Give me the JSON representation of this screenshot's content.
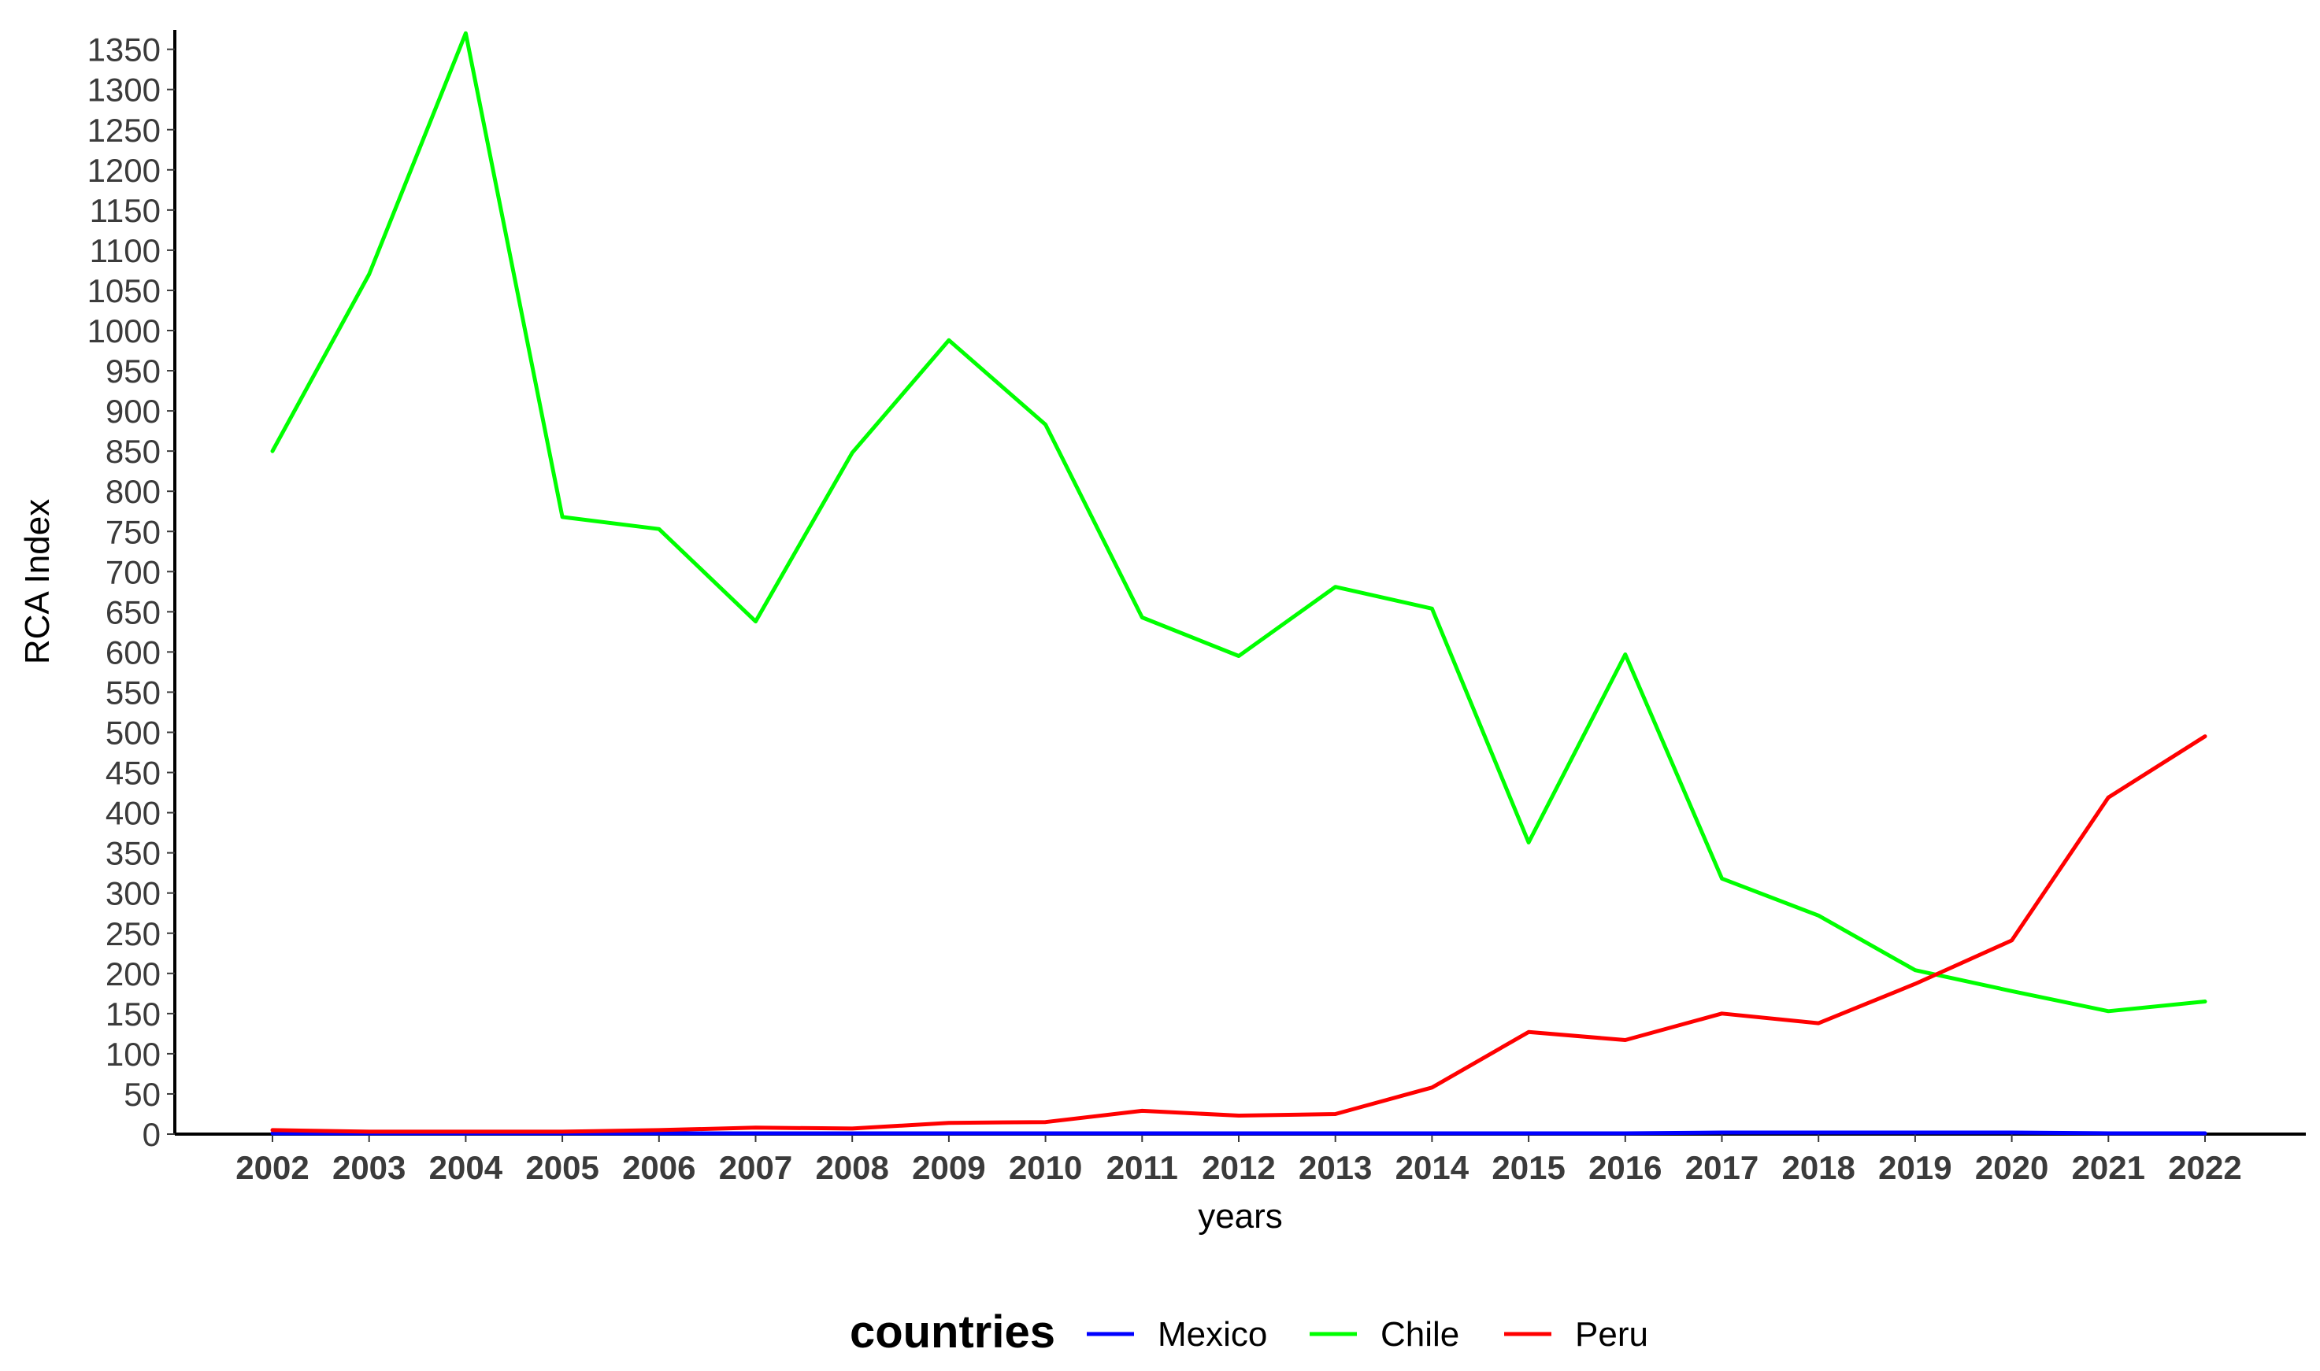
{
  "chart_data": {
    "type": "line",
    "title": "",
    "xlabel": "years",
    "ylabel": "RCA Index",
    "x": [
      2002,
      2003,
      2004,
      2005,
      2006,
      2007,
      2008,
      2009,
      2010,
      2011,
      2012,
      2013,
      2014,
      2015,
      2016,
      2017,
      2018,
      2019,
      2020,
      2021,
      2022
    ],
    "xticks": [
      "2002",
      "2003",
      "2004",
      "2005",
      "2006",
      "2007",
      "2008",
      "2009",
      "2010",
      "2011",
      "2012",
      "2013",
      "2014",
      "2015",
      "2016",
      "2017",
      "2018",
      "2019",
      "2020",
      "2021",
      "2022"
    ],
    "ylim": [
      0,
      1400
    ],
    "yticks": [
      0,
      50,
      100,
      150,
      200,
      250,
      300,
      350,
      400,
      450,
      500,
      550,
      600,
      650,
      700,
      750,
      800,
      850,
      900,
      950,
      1000,
      1050,
      1100,
      1150,
      1200,
      1250,
      1300,
      1350
    ],
    "grid": false,
    "legend": {
      "title": "countries",
      "placement": "bottom"
    },
    "series": [
      {
        "name": "Mexico",
        "color": "#0000ff",
        "values": [
          1,
          1,
          1,
          1,
          1,
          1,
          1,
          1,
          1,
          1,
          1,
          1,
          1,
          1,
          1,
          2,
          2,
          2,
          2,
          1,
          1
        ]
      },
      {
        "name": "Chile",
        "color": "#00ff00",
        "values": [
          850,
          1070,
          1370,
          768,
          753,
          638,
          848,
          988,
          883,
          643,
          595,
          681,
          654,
          363,
          597,
          318,
          272,
          204,
          178,
          153,
          165
        ]
      },
      {
        "name": "Peru",
        "color": "#ff0000",
        "values": [
          5,
          3,
          3,
          3,
          5,
          8,
          7,
          14,
          15,
          29,
          23,
          25,
          58,
          127,
          117,
          150,
          138,
          187,
          241,
          419,
          495
        ]
      }
    ]
  }
}
